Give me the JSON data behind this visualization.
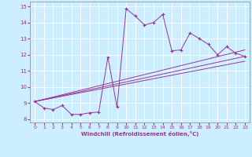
{
  "xlabel": "Windchill (Refroidissement éolien,°C)",
  "bg_color": "#cceeff",
  "grid_color": "#aaddcc",
  "line_color": "#993399",
  "xlim": [
    -0.5,
    23.5
  ],
  "ylim": [
    7.8,
    15.3
  ],
  "xticks": [
    0,
    1,
    2,
    3,
    4,
    5,
    6,
    7,
    8,
    9,
    10,
    11,
    12,
    13,
    14,
    15,
    16,
    17,
    18,
    19,
    20,
    21,
    22,
    23
  ],
  "yticks": [
    8,
    9,
    10,
    11,
    12,
    13,
    14,
    15
  ],
  "main_x": [
    0,
    1,
    2,
    3,
    4,
    5,
    6,
    7,
    8,
    9,
    10,
    11,
    12,
    13,
    14,
    15,
    16,
    17,
    18,
    19,
    20,
    21,
    22,
    23
  ],
  "main_y": [
    9.1,
    8.7,
    8.6,
    8.85,
    8.3,
    8.3,
    8.4,
    8.45,
    11.85,
    8.75,
    14.85,
    14.4,
    13.85,
    14.0,
    14.5,
    12.25,
    12.3,
    13.35,
    13.0,
    12.65,
    12.0,
    12.5,
    12.1,
    11.9
  ],
  "trend1_x": [
    0,
    23
  ],
  "trend1_y": [
    9.1,
    12.3
  ],
  "trend2_x": [
    0,
    23
  ],
  "trend2_y": [
    9.1,
    11.6
  ],
  "trend3_x": [
    0,
    23
  ],
  "trend3_y": [
    9.1,
    11.9
  ]
}
